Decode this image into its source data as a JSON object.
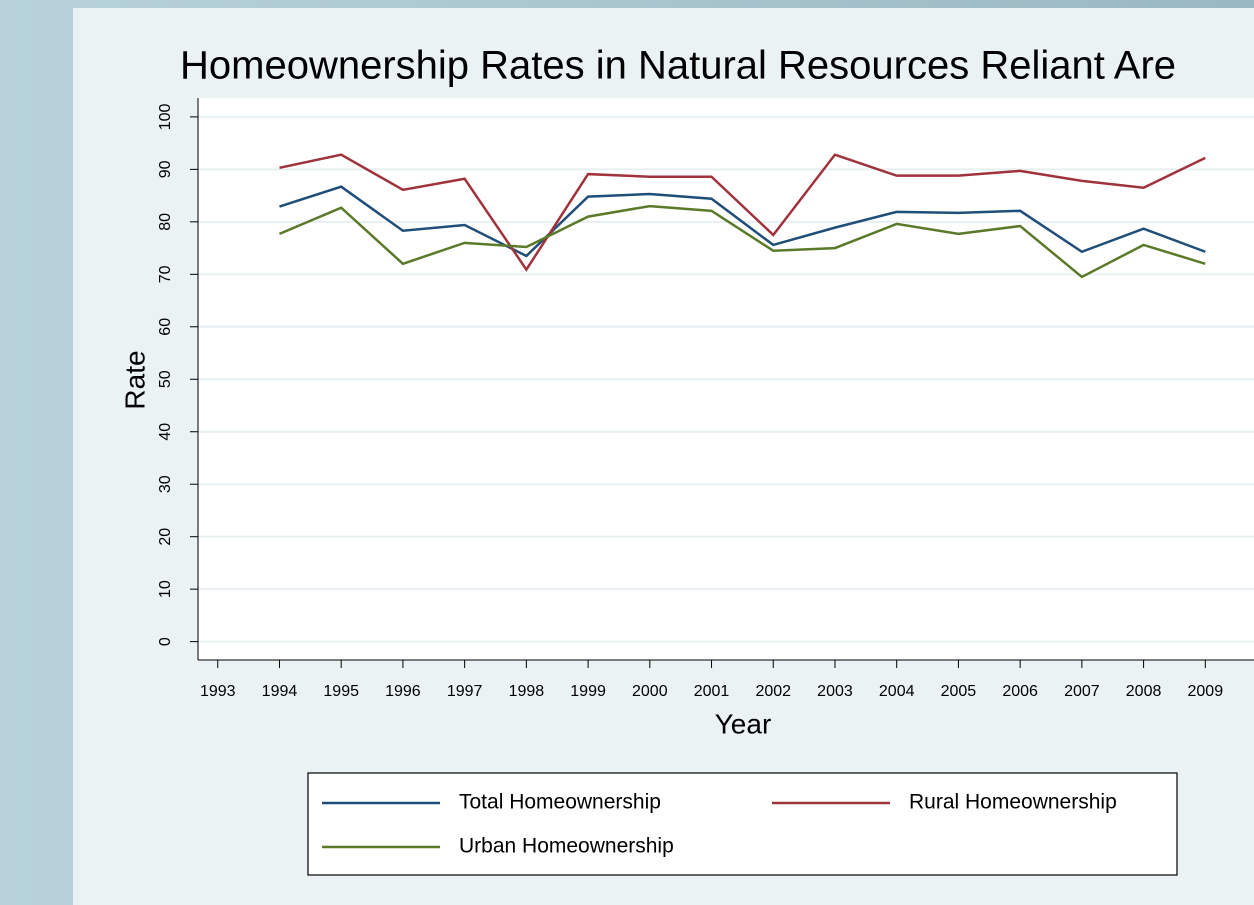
{
  "chart_data": {
    "type": "line",
    "title": "Homeownership Rates in Natural Resources Reliant Are",
    "x_label": "Year",
    "y_label": "Rate",
    "x": [
      1994,
      1995,
      1996,
      1997,
      1998,
      1999,
      2000,
      2001,
      2002,
      2003,
      2004,
      2005,
      2006,
      2007,
      2008,
      2009
    ],
    "xlim": [
      1992.68,
      2010.68
    ],
    "xticks": [
      1993,
      1994,
      1995,
      1996,
      1997,
      1998,
      1999,
      2000,
      2001,
      2002,
      2003,
      2004,
      2005,
      2006,
      2007,
      2008,
      2009
    ],
    "ylim": [
      -3.5,
      103.6
    ],
    "yticks": [
      0,
      10,
      20,
      30,
      40,
      50,
      60,
      70,
      80,
      90,
      100
    ],
    "grid": true,
    "legend": "bottom",
    "series": [
      {
        "name": "Total Homeownership",
        "color": "#1f4e79",
        "values": [
          82.9,
          86.7,
          78.3,
          79.4,
          73.5,
          84.8,
          85.3,
          84.4,
          75.6,
          78.9,
          81.9,
          81.7,
          82.1,
          74.3,
          78.7,
          74.3
        ]
      },
      {
        "name": "Rural Homeownership",
        "color": "#a0323c",
        "values": [
          90.3,
          92.8,
          86.1,
          88.2,
          70.9,
          89.1,
          88.6,
          88.6,
          77.5,
          92.8,
          88.8,
          88.8,
          89.7,
          87.8,
          86.5,
          92.2
        ]
      },
      {
        "name": "Urban Homeownership",
        "color": "#5a7a2a",
        "values": [
          77.7,
          82.7,
          72.0,
          76.0,
          75.2,
          81.0,
          83.0,
          82.1,
          74.5,
          75.0,
          79.6,
          77.7,
          79.2,
          69.5,
          75.6,
          72.0
        ]
      }
    ]
  }
}
